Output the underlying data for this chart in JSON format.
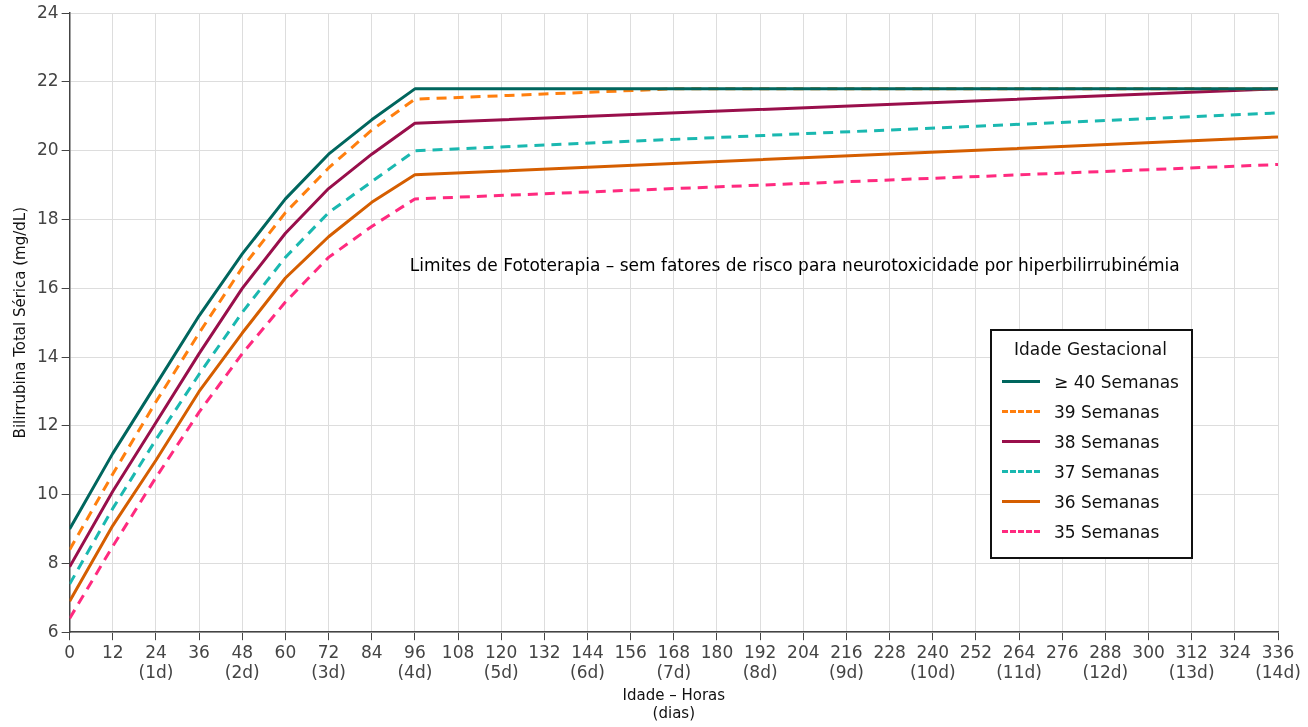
{
  "chart_data": {
    "type": "line",
    "xlabel": "Idade – Horas\n(dias)",
    "ylabel": "Bilirrubina Total Sérica (mg/dL)",
    "legend_title": "Idade Gestacional",
    "legend": "right",
    "grid": true,
    "marker": "none",
    "annotations": [
      "Limites de Fototerapia – sem fatores de risco para neurotoxicidade por hiperbilirrubinémia"
    ],
    "xlim": [
      0,
      336
    ],
    "ylim": [
      6,
      24
    ],
    "yticks": [
      6,
      8,
      10,
      12,
      14,
      16,
      18,
      20,
      22,
      24
    ],
    "xticks": [
      0,
      12,
      {
        "value": 24,
        "label": "24\n(1d)"
      },
      36,
      {
        "value": 48,
        "label": "48\n(2d)"
      },
      60,
      {
        "value": 72,
        "label": "72\n(3d)"
      },
      84,
      {
        "value": 96,
        "label": "96\n(4d)"
      },
      108,
      {
        "value": 120,
        "label": "120\n(5d)"
      },
      132,
      {
        "value": 144,
        "label": "144\n(6d)"
      },
      156,
      {
        "value": 168,
        "label": "168\n(7d)"
      },
      180,
      {
        "value": 192,
        "label": "192\n(8d)"
      },
      204,
      {
        "value": 216,
        "label": "216\n(9d)"
      },
      228,
      {
        "value": 240,
        "label": "240\n(10d)"
      },
      252,
      {
        "value": 264,
        "label": "264\n(11d)"
      },
      276,
      {
        "value": 288,
        "label": "288\n(12d)"
      },
      300,
      {
        "value": 312,
        "label": "312\n(13d)"
      },
      324,
      {
        "value": 336,
        "label": "336\n(14d)"
      }
    ],
    "series": [
      {
        "name": "≥ 40 Semanas",
        "color": "#00665e",
        "line_style": "solid",
        "x": [
          0,
          12,
          24,
          36,
          48,
          60,
          72,
          84,
          96,
          336
        ],
        "values": [
          9.0,
          11.2,
          13.2,
          15.2,
          17.0,
          18.6,
          19.9,
          20.9,
          21.8,
          21.8
        ]
      },
      {
        "name": "39 Semanas",
        "color": "#ff7f0e",
        "line_style": "dashed",
        "x": [
          0,
          12,
          24,
          36,
          48,
          60,
          72,
          84,
          96,
          168,
          336
        ],
        "values": [
          8.4,
          10.6,
          12.7,
          14.7,
          16.6,
          18.2,
          19.5,
          20.6,
          21.5,
          21.8,
          21.8
        ]
      },
      {
        "name": "38 Semanas",
        "color": "#990f4b",
        "line_style": "solid",
        "x": [
          0,
          12,
          24,
          36,
          48,
          60,
          72,
          84,
          96,
          336
        ],
        "values": [
          7.9,
          10.1,
          12.1,
          14.1,
          16.0,
          17.6,
          18.9,
          19.9,
          20.8,
          21.8
        ]
      },
      {
        "name": "37 Semanas",
        "color": "#1ab8b0",
        "line_style": "dashed",
        "x": [
          0,
          12,
          24,
          36,
          48,
          60,
          72,
          84,
          96,
          336
        ],
        "values": [
          7.4,
          9.6,
          11.6,
          13.5,
          15.3,
          16.9,
          18.2,
          19.1,
          20.0,
          21.1
        ]
      },
      {
        "name": "36 Semanas",
        "color": "#d55e00",
        "line_style": "solid",
        "x": [
          0,
          12,
          24,
          36,
          48,
          60,
          72,
          84,
          96,
          336
        ],
        "values": [
          6.9,
          9.1,
          11.0,
          13.0,
          14.7,
          16.3,
          17.5,
          18.5,
          19.3,
          20.4
        ]
      },
      {
        "name": "35 Semanas",
        "color": "#ff2a7f",
        "line_style": "dashed",
        "x": [
          0,
          12,
          24,
          36,
          48,
          60,
          72,
          84,
          96,
          336
        ],
        "values": [
          6.4,
          8.5,
          10.5,
          12.4,
          14.1,
          15.6,
          16.9,
          17.8,
          18.6,
          19.6
        ]
      }
    ]
  }
}
